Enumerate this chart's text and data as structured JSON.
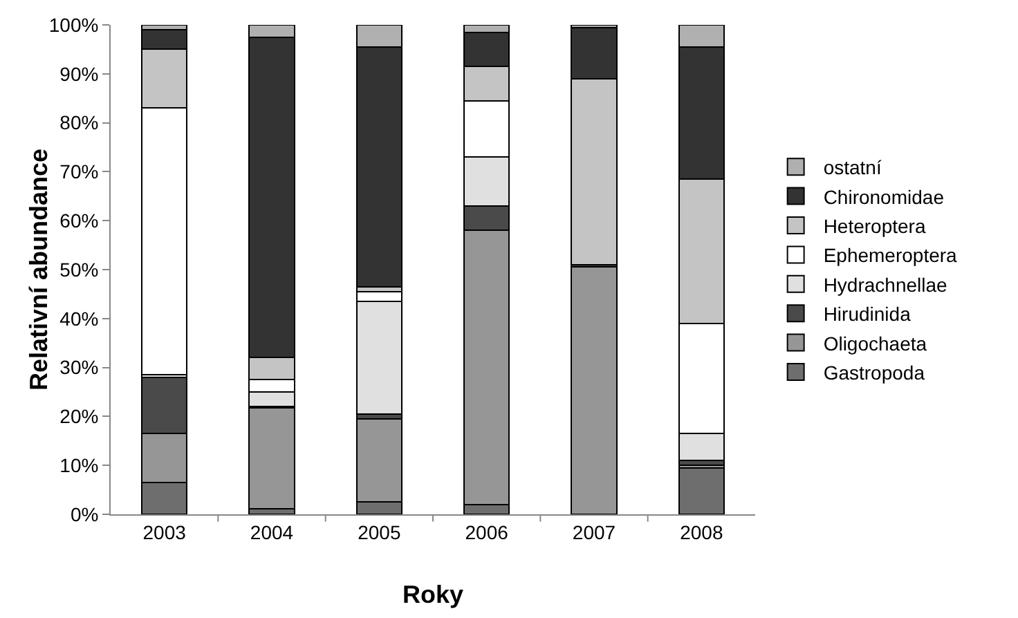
{
  "chart_data": {
    "type": "bar",
    "stacked": true,
    "xlabel": "Roky",
    "ylabel": "Relativní abundance",
    "categories": [
      "2003",
      "2004",
      "2005",
      "2006",
      "2007",
      "2008"
    ],
    "ylim": [
      0,
      100
    ],
    "yticks": [
      {
        "value": 0,
        "label": "0%"
      },
      {
        "value": 10,
        "label": "10%"
      },
      {
        "value": 20,
        "label": "20%"
      },
      {
        "value": 30,
        "label": "30%"
      },
      {
        "value": 40,
        "label": "40%"
      },
      {
        "value": 50,
        "label": "50%"
      },
      {
        "value": 60,
        "label": "60%"
      },
      {
        "value": 70,
        "label": "70%"
      },
      {
        "value": 80,
        "label": "80%"
      },
      {
        "value": 90,
        "label": "90%"
      },
      {
        "value": 100,
        "label": "100%"
      }
    ],
    "grid": false,
    "legend": "right",
    "series": [
      {
        "name": "Gastropoda",
        "color": "#6e6e6e",
        "values": [
          6.5,
          1.2,
          2.5,
          2,
          0,
          9.5
        ]
      },
      {
        "name": "Oligochaeta",
        "color": "#969696",
        "values": [
          10,
          20.5,
          17,
          56,
          50.5,
          0.5
        ]
      },
      {
        "name": "Hirudinida",
        "color": "#4a4a4a",
        "values": [
          11.5,
          0.3,
          1,
          5,
          0.5,
          1
        ]
      },
      {
        "name": "Hydrachnellae",
        "color": "#e0e0e0",
        "values": [
          0.5,
          3,
          23,
          10,
          0,
          5.5
        ]
      },
      {
        "name": "Ephemeroptera",
        "color": "#ffffff",
        "values": [
          54.5,
          2.5,
          2,
          11.5,
          0,
          22.5
        ]
      },
      {
        "name": "Heteroptera",
        "color": "#c4c4c4",
        "values": [
          12,
          4.5,
          1,
          7,
          38,
          29.5
        ]
      },
      {
        "name": "Chironomidae",
        "color": "#333333",
        "values": [
          4,
          65.5,
          49,
          7,
          10.5,
          27
        ]
      },
      {
        "name": "ostatní",
        "color": "#b0b0b0",
        "values": [
          1,
          2.5,
          4.5,
          1.5,
          0.5,
          4.5
        ]
      }
    ]
  }
}
